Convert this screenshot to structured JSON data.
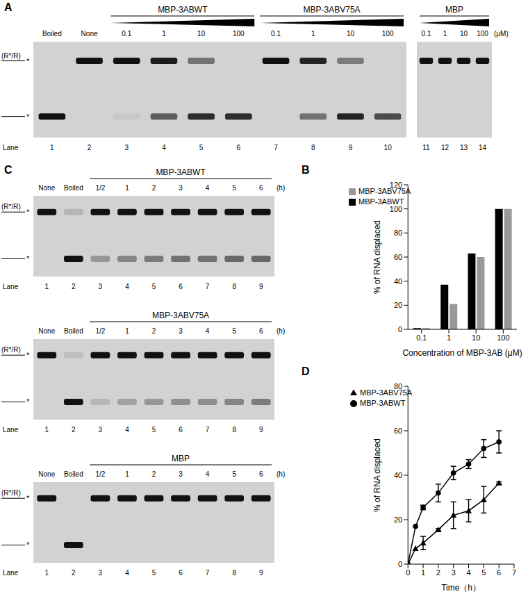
{
  "chart_data": [
    {
      "panel_label": "B",
      "type": "bar",
      "xlabel": "Concentration of MBP-3AB (μM)",
      "ylabel": "% of RNA displaced",
      "categories": [
        "0.1",
        "1",
        "10",
        "100"
      ],
      "series": [
        {
          "name": "MBP-3ABWT",
          "color": "#000000",
          "values": [
            1,
            37,
            63,
            100
          ]
        },
        {
          "name": "MBP-3ABV75A",
          "color": "#999999",
          "values": [
            1,
            21,
            60,
            100
          ]
        }
      ],
      "ylim": [
        0,
        120
      ],
      "yticks": [
        0,
        20,
        40,
        60,
        80,
        100,
        120
      ],
      "grid": false,
      "legend": "upper left"
    },
    {
      "panel_label": "D",
      "type": "line",
      "xlabel": "Time（h）",
      "ylabel": "% of RNA displaced",
      "x": [
        0,
        0.5,
        1,
        2,
        3,
        4,
        5,
        6
      ],
      "series": [
        {
          "name": "MBP-3ABWT",
          "color": "#000000",
          "marker": "circle",
          "values": [
            0,
            17,
            25.5,
            32,
            41,
            45,
            52,
            55
          ],
          "errors": [
            0,
            0,
            1,
            4,
            3,
            2,
            4,
            5
          ]
        },
        {
          "name": "MBP-3ABV75A",
          "color": "#000000",
          "marker": "triangle",
          "values": [
            0,
            7,
            9.5,
            15.5,
            22,
            24,
            29,
            36.5
          ],
          "errors": [
            0,
            0,
            3,
            0.5,
            6,
            5,
            6,
            0.5
          ]
        }
      ],
      "xlim": [
        0,
        7
      ],
      "xticks": [
        0,
        1,
        2,
        3,
        4,
        5,
        6,
        7
      ],
      "ylim": [
        0,
        80
      ],
      "yticks": [
        0,
        20,
        40,
        60,
        80
      ],
      "grid": false,
      "legend": "upper left"
    }
  ],
  "gels": [
    {
      "panel_label": "A",
      "gels": [
        {
          "lane_title": "Lane",
          "upper_label": "(R*/R)",
          "band_mark": "*",
          "lanes": [
            {
              "number": 1,
              "header": "Boiled",
              "upper": 0,
              "lower": 1
            },
            {
              "number": 2,
              "header": "None",
              "upper": 1,
              "lower": 0
            },
            {
              "number": 3,
              "upper": 1,
              "lower": 0.05
            },
            {
              "number": 4,
              "upper": 0.95,
              "lower": 0.6
            },
            {
              "number": 5,
              "upper": 0.5,
              "lower": 0.85
            },
            {
              "number": 6,
              "upper": 0,
              "lower": 0.85
            },
            {
              "number": 7,
              "upper": 1,
              "lower": 0
            },
            {
              "number": 8,
              "upper": 0.9,
              "lower": 0.5
            },
            {
              "number": 9,
              "upper": 0.45,
              "lower": 0.9
            },
            {
              "number": 10,
              "upper": 0,
              "lower": 0.7
            }
          ],
          "groups": [
            {
              "label": "MBP-3ABWT",
              "first_lane": 3,
              "steps": [
                "0.1",
                "1",
                "10",
                "100"
              ]
            },
            {
              "label": "MBP-3ABV75A",
              "first_lane": 7,
              "steps": [
                "0.1",
                "1",
                "10",
                "100"
              ]
            }
          ]
        },
        {
          "unit": "(μM)",
          "lanes": [
            {
              "number": 11,
              "upper": 1,
              "lower": 0
            },
            {
              "number": 12,
              "upper": 1,
              "lower": 0
            },
            {
              "number": 13,
              "upper": 1,
              "lower": 0
            },
            {
              "number": 14,
              "upper": 1,
              "lower": 0
            }
          ],
          "groups": [
            {
              "label": "MBP",
              "first_lane": 11,
              "steps": [
                "0.1",
                "1",
                "10",
                "100"
              ]
            }
          ]
        }
      ]
    },
    {
      "panel_label": "C",
      "gels": [
        {
          "lane_title": "Lane",
          "upper_label": "(R*/R)",
          "band_mark": "*",
          "unit": "(h)",
          "lanes": [
            {
              "number": 1,
              "header": "None",
              "upper": 1,
              "lower": 0
            },
            {
              "number": 2,
              "header": "Boiled",
              "upper": 0.15,
              "lower": 1
            },
            {
              "number": 3,
              "upper": 1,
              "lower": 0.3
            },
            {
              "number": 4,
              "upper": 1,
              "lower": 0.4
            },
            {
              "number": 5,
              "upper": 1,
              "lower": 0.45
            },
            {
              "number": 6,
              "upper": 1,
              "lower": 0.5
            },
            {
              "number": 7,
              "upper": 1,
              "lower": 0.5
            },
            {
              "number": 8,
              "upper": 1,
              "lower": 0.55
            },
            {
              "number": 9,
              "upper": 1,
              "lower": 0.55
            }
          ],
          "groups": [
            {
              "label": "MBP-3ABWT",
              "first_lane": 3,
              "steps": [
                "1/2",
                "1",
                "2",
                "3",
                "4",
                "5",
                "6"
              ]
            }
          ]
        },
        {
          "lane_title": "Lane",
          "upper_label": "(R*/R)",
          "band_mark": "*",
          "unit": "(h)",
          "lanes": [
            {
              "number": 1,
              "header": "None",
              "upper": 1,
              "lower": 0
            },
            {
              "number": 2,
              "header": "Boiled",
              "upper": 0.1,
              "lower": 1
            },
            {
              "number": 3,
              "upper": 1,
              "lower": 0.15
            },
            {
              "number": 4,
              "upper": 1,
              "lower": 0.25
            },
            {
              "number": 5,
              "upper": 1,
              "lower": 0.3
            },
            {
              "number": 6,
              "upper": 1,
              "lower": 0.35
            },
            {
              "number": 7,
              "upper": 1,
              "lower": 0.35
            },
            {
              "number": 8,
              "upper": 1,
              "lower": 0.4
            },
            {
              "number": 9,
              "upper": 1,
              "lower": 0.45
            }
          ],
          "groups": [
            {
              "label": "MBP-3ABV75A",
              "first_lane": 3,
              "steps": [
                "1/2",
                "1",
                "2",
                "3",
                "4",
                "5",
                "6"
              ]
            }
          ]
        },
        {
          "lane_title": "Lane",
          "upper_label": "(R*/R)",
          "band_mark": "*",
          "unit": "(h)",
          "lanes": [
            {
              "number": 1,
              "header": "None",
              "upper": 1,
              "lower": 0
            },
            {
              "number": 2,
              "header": "Boiled",
              "upper": 0,
              "lower": 1
            },
            {
              "number": 3,
              "upper": 1,
              "lower": 0
            },
            {
              "number": 4,
              "upper": 1,
              "lower": 0
            },
            {
              "number": 5,
              "upper": 1,
              "lower": 0
            },
            {
              "number": 6,
              "upper": 1,
              "lower": 0
            },
            {
              "number": 7,
              "upper": 1,
              "lower": 0
            },
            {
              "number": 8,
              "upper": 1,
              "lower": 0
            },
            {
              "number": 9,
              "upper": 1,
              "lower": 0
            }
          ],
          "groups": [
            {
              "label": "MBP",
              "first_lane": 3,
              "steps": [
                "1/2",
                "1",
                "2",
                "3",
                "4",
                "5",
                "6"
              ]
            }
          ]
        }
      ]
    }
  ]
}
